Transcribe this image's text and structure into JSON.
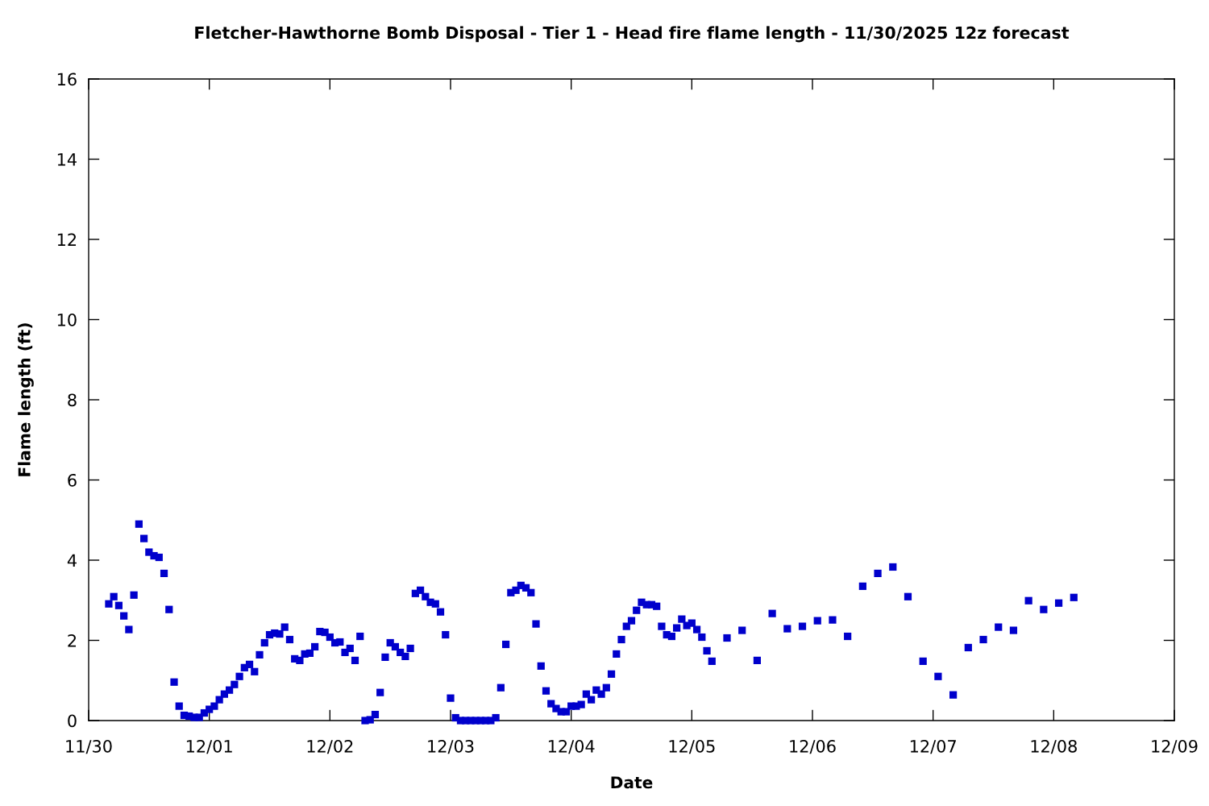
{
  "chart_data": {
    "type": "scatter",
    "title": "Fletcher-Hawthorne Bomb Disposal - Tier 1 - Head fire flame length - 11/30/2025 12z forecast",
    "xlabel": "Date",
    "ylabel": "Flame length (ft)",
    "x": [
      "2025-11-30T04:00",
      "2025-11-30T05:00",
      "2025-11-30T06:00",
      "2025-11-30T07:00",
      "2025-11-30T08:00",
      "2025-11-30T09:00",
      "2025-11-30T10:00",
      "2025-11-30T11:00",
      "2025-11-30T12:00",
      "2025-11-30T13:00",
      "2025-11-30T14:00",
      "2025-11-30T15:00",
      "2025-11-30T16:00",
      "2025-11-30T17:00",
      "2025-11-30T18:00",
      "2025-11-30T19:00",
      "2025-11-30T20:00",
      "2025-11-30T21:00",
      "2025-11-30T22:00",
      "2025-11-30T23:00",
      "2025-12-01T00:00",
      "2025-12-01T01:00",
      "2025-12-01T02:00",
      "2025-12-01T03:00",
      "2025-12-01T04:00",
      "2025-12-01T05:00",
      "2025-12-01T06:00",
      "2025-12-01T07:00",
      "2025-12-01T08:00",
      "2025-12-01T09:00",
      "2025-12-01T10:00",
      "2025-12-01T11:00",
      "2025-12-01T12:00",
      "2025-12-01T13:00",
      "2025-12-01T14:00",
      "2025-12-01T15:00",
      "2025-12-01T16:00",
      "2025-12-01T17:00",
      "2025-12-01T18:00",
      "2025-12-01T19:00",
      "2025-12-01T20:00",
      "2025-12-01T21:00",
      "2025-12-01T22:00",
      "2025-12-01T23:00",
      "2025-12-02T00:00",
      "2025-12-02T01:00",
      "2025-12-02T02:00",
      "2025-12-02T03:00",
      "2025-12-02T04:00",
      "2025-12-02T05:00",
      "2025-12-02T06:00",
      "2025-12-02T07:00",
      "2025-12-02T08:00",
      "2025-12-02T09:00",
      "2025-12-02T10:00",
      "2025-12-02T11:00",
      "2025-12-02T12:00",
      "2025-12-02T13:00",
      "2025-12-02T14:00",
      "2025-12-02T15:00",
      "2025-12-02T16:00",
      "2025-12-02T17:00",
      "2025-12-02T18:00",
      "2025-12-02T19:00",
      "2025-12-02T20:00",
      "2025-12-02T21:00",
      "2025-12-02T22:00",
      "2025-12-02T23:00",
      "2025-12-03T00:00",
      "2025-12-03T01:00",
      "2025-12-03T02:00",
      "2025-12-03T03:00",
      "2025-12-03T04:00",
      "2025-12-03T05:00",
      "2025-12-03T06:00",
      "2025-12-03T07:00",
      "2025-12-03T08:00",
      "2025-12-03T09:00",
      "2025-12-03T10:00",
      "2025-12-03T11:00",
      "2025-12-03T12:00",
      "2025-12-03T13:00",
      "2025-12-03T14:00",
      "2025-12-03T15:00",
      "2025-12-03T16:00",
      "2025-12-03T17:00",
      "2025-12-03T18:00",
      "2025-12-03T19:00",
      "2025-12-03T20:00",
      "2025-12-03T21:00",
      "2025-12-03T22:00",
      "2025-12-03T23:00",
      "2025-12-04T00:00",
      "2025-12-04T01:00",
      "2025-12-04T02:00",
      "2025-12-04T03:00",
      "2025-12-04T04:00",
      "2025-12-04T05:00",
      "2025-12-04T06:00",
      "2025-12-04T07:00",
      "2025-12-04T08:00",
      "2025-12-04T09:00",
      "2025-12-04T10:00",
      "2025-12-04T11:00",
      "2025-12-04T12:00",
      "2025-12-04T13:00",
      "2025-12-04T14:00",
      "2025-12-04T15:00",
      "2025-12-04T16:00",
      "2025-12-04T17:00",
      "2025-12-04T18:00",
      "2025-12-04T19:00",
      "2025-12-04T20:00",
      "2025-12-04T21:00",
      "2025-12-04T22:00",
      "2025-12-04T23:00",
      "2025-12-05T00:00",
      "2025-12-05T01:00",
      "2025-12-05T02:00",
      "2025-12-05T03:00",
      "2025-12-05T04:00",
      "2025-12-05T07:00",
      "2025-12-05T10:00",
      "2025-12-05T13:00",
      "2025-12-05T16:00",
      "2025-12-05T19:00",
      "2025-12-05T22:00",
      "2025-12-06T01:00",
      "2025-12-06T04:00",
      "2025-12-06T07:00",
      "2025-12-06T10:00",
      "2025-12-06T13:00",
      "2025-12-06T16:00",
      "2025-12-06T19:00",
      "2025-12-06T22:00",
      "2025-12-07T01:00",
      "2025-12-07T04:00",
      "2025-12-07T07:00",
      "2025-12-07T10:00",
      "2025-12-07T13:00",
      "2025-12-07T16:00",
      "2025-12-07T19:00",
      "2025-12-07T22:00",
      "2025-12-08T01:00",
      "2025-12-08T04:00"
    ],
    "series": [
      {
        "color": "#0000cc",
        "values": [
          2.91,
          3.09,
          2.87,
          2.61,
          2.27,
          3.13,
          4.9,
          4.54,
          4.2,
          4.11,
          4.07,
          3.67,
          2.77,
          0.96,
          0.36,
          0.13,
          0.11,
          0.08,
          0.08,
          0.19,
          0.28,
          0.36,
          0.52,
          0.66,
          0.76,
          0.9,
          1.1,
          1.32,
          1.4,
          1.22,
          1.64,
          1.94,
          2.14,
          2.18,
          2.16,
          2.33,
          2.02,
          1.54,
          1.5,
          1.66,
          1.68,
          1.84,
          2.22,
          2.2,
          2.08,
          1.94,
          1.96,
          1.7,
          1.8,
          1.5,
          2.1,
          0,
          0.02,
          0.15,
          0.7,
          1.58,
          1.94,
          1.84,
          1.7,
          1.6,
          1.8,
          3.17,
          3.25,
          3.09,
          2.95,
          2.91,
          2.71,
          2.14,
          0.56,
          0.07,
          0,
          0,
          0,
          0,
          0,
          0,
          0,
          0.07,
          0.82,
          1.9,
          3.19,
          3.25,
          3.37,
          3.31,
          3.19,
          2.41,
          1.36,
          0.74,
          0.42,
          0.3,
          0.22,
          0.22,
          0.36,
          0.36,
          0.4,
          0.66,
          0.52,
          0.76,
          0.66,
          0.82,
          1.16,
          1.66,
          2.02,
          2.35,
          2.49,
          2.75,
          2.95,
          2.89,
          2.89,
          2.85,
          2.35,
          2.14,
          2.1,
          2.31,
          2.53,
          2.37,
          2.43,
          2.27,
          2.08,
          1.74,
          1.48,
          2.06,
          2.25,
          1.5,
          2.67,
          2.29,
          2.35,
          2.49,
          2.51,
          2.1,
          3.35,
          3.67,
          3.83,
          3.09,
          1.48,
          1.1,
          0.64,
          1.82,
          2.02,
          2.33,
          2.25,
          2.99,
          2.77,
          2.93,
          3.07
        ]
      }
    ],
    "xlim": [
      "2025-11-30",
      "2025-12-09"
    ],
    "xticks": [
      {
        "value": "2025-11-30",
        "label": "11/30"
      },
      {
        "value": "2025-12-01",
        "label": "12/01"
      },
      {
        "value": "2025-12-02",
        "label": "12/02"
      },
      {
        "value": "2025-12-03",
        "label": "12/03"
      },
      {
        "value": "2025-12-04",
        "label": "12/04"
      },
      {
        "value": "2025-12-05",
        "label": "12/05"
      },
      {
        "value": "2025-12-06",
        "label": "12/06"
      },
      {
        "value": "2025-12-07",
        "label": "12/07"
      },
      {
        "value": "2025-12-08",
        "label": "12/08"
      },
      {
        "value": "2025-12-09",
        "label": "12/09"
      }
    ],
    "ylim": [
      0,
      16
    ],
    "yticks": [
      0,
      2,
      4,
      6,
      8,
      10,
      12,
      14,
      16
    ],
    "marker": "square",
    "grid": false
  }
}
